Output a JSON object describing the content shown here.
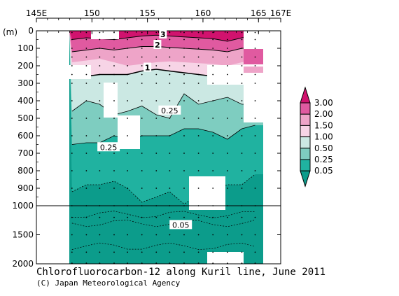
{
  "chart_data": {
    "type": "heatmap",
    "title": "Chlorofluorocarbon-12 along Kuril line, June 2011",
    "credit": "(C) Japan Meteorological Agency",
    "ylabel": "(m)",
    "x_axis": {
      "ticks": [
        {
          "value": 145,
          "label": "145E"
        },
        {
          "value": 150,
          "label": "150"
        },
        {
          "value": 155,
          "label": "155"
        },
        {
          "value": 160,
          "label": "160"
        },
        {
          "value": 165,
          "label": "165"
        },
        {
          "value": 167,
          "label": "167E"
        }
      ],
      "range": [
        145,
        167
      ]
    },
    "y_axis": {
      "upper_ticks": [
        {
          "value": 0,
          "label": "0"
        },
        {
          "value": 100,
          "label": "100"
        },
        {
          "value": 200,
          "label": "200"
        },
        {
          "value": 300,
          "label": "300"
        },
        {
          "value": 400,
          "label": "400"
        },
        {
          "value": 500,
          "label": "500"
        },
        {
          "value": 600,
          "label": "600"
        },
        {
          "value": 700,
          "label": "700"
        },
        {
          "value": 800,
          "label": "800"
        },
        {
          "value": 900,
          "label": "900"
        },
        {
          "value": 1000,
          "label": "1000"
        }
      ],
      "lower_ticks": [
        {
          "value": 1500,
          "label": "1500"
        },
        {
          "value": 2000,
          "label": "2000"
        }
      ],
      "range": [
        0,
        2000
      ],
      "scale": "piecewise linear (0-1000 m expanded, 1000-2000 m compressed)"
    },
    "colorbar": {
      "levels": [
        {
          "label": "3.00",
          "color": "#d1126e"
        },
        {
          "label": "2.00",
          "color": "#e05aa0"
        },
        {
          "label": "1.50",
          "color": "#eea4c8"
        },
        {
          "label": "1.00",
          "color": "#f7d4e6"
        },
        {
          "label": "0.50",
          "color": "#cbe8e3"
        },
        {
          "label": "0.25",
          "color": "#7ecdc0"
        },
        {
          "label": "0.05",
          "color": "#20b2a0"
        }
      ],
      "over_color": "#d1126e",
      "under_color": "#0c9c8b"
    },
    "contour_labels": [
      {
        "text": "3",
        "lon": 156.4,
        "depth": 20
      },
      {
        "text": "2",
        "lon": 155.9,
        "depth": 80
      },
      {
        "text": "1",
        "lon": 155.0,
        "depth": 210
      },
      {
        "text": "0.25",
        "lon": 157.0,
        "depth": 455
      },
      {
        "text": "0.25",
        "lon": 151.5,
        "depth": 665
      },
      {
        "text": "0.05",
        "lon": 158.0,
        "depth": 1330
      }
    ],
    "colors": {
      "lt005": "#0c9c8b",
      "c005_025": "#20b2a0",
      "c025_05": "#7ecdc0",
      "c05_1": "#cbe8e3",
      "c1_15": "#f7d4e6",
      "c15_2": "#eea4c8",
      "c2_3": "#e05aa0",
      "gt3": "#d1126e"
    }
  }
}
